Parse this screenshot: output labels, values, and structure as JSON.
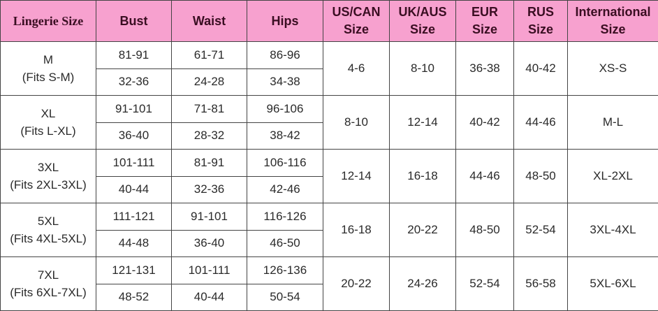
{
  "header_color": "#f7a1cf",
  "headers": {
    "lingerie_size": "Lingerie Size",
    "bust": "Bust",
    "waist": "Waist",
    "hips": "Hips",
    "us_can_1": "US/CAN",
    "us_can_2": "Size",
    "uk_aus_1": "UK/AUS",
    "uk_aus_2": "Size",
    "eur_1": "EUR",
    "eur_2": "Size",
    "rus_1": "RUS",
    "rus_2": "Size",
    "intl_1": "International",
    "intl_2": "Size"
  },
  "rows": [
    {
      "size": "M",
      "fits": "(Fits S-M)",
      "bust_cm": "81-91",
      "bust_in": "32-36",
      "waist_cm": "61-71",
      "waist_in": "24-28",
      "hips_cm": "86-96",
      "hips_in": "34-38",
      "us": "4-6",
      "uk": "8-10",
      "eur": "36-38",
      "rus": "40-42",
      "intl": "XS-S"
    },
    {
      "size": "XL",
      "fits": "(Fits L-XL)",
      "bust_cm": "91-101",
      "bust_in": "36-40",
      "waist_cm": "71-81",
      "waist_in": "28-32",
      "hips_cm": "96-106",
      "hips_in": "38-42",
      "us": "8-10",
      "uk": "12-14",
      "eur": "40-42",
      "rus": "44-46",
      "intl": "M-L"
    },
    {
      "size": "3XL",
      "fits": "(Fits 2XL-3XL)",
      "bust_cm": "101-111",
      "bust_in": "40-44",
      "waist_cm": "81-91",
      "waist_in": "32-36",
      "hips_cm": "106-116",
      "hips_in": "42-46",
      "us": "12-14",
      "uk": "16-18",
      "eur": "44-46",
      "rus": "48-50",
      "intl": "XL-2XL"
    },
    {
      "size": "5XL",
      "fits": "(Fits 4XL-5XL)",
      "bust_cm": "111-121",
      "bust_in": "44-48",
      "waist_cm": "91-101",
      "waist_in": "36-40",
      "hips_cm": "116-126",
      "hips_in": "46-50",
      "us": "16-18",
      "uk": "20-22",
      "eur": "48-50",
      "rus": "52-54",
      "intl": "3XL-4XL"
    },
    {
      "size": "7XL",
      "fits": "(Fits 6XL-7XL)",
      "bust_cm": "121-131",
      "bust_in": "48-52",
      "waist_cm": "101-111",
      "waist_in": "40-44",
      "hips_cm": "126-136",
      "hips_in": "50-54",
      "us": "20-22",
      "uk": "24-26",
      "eur": "52-54",
      "rus": "56-58",
      "intl": "5XL-6XL"
    }
  ]
}
